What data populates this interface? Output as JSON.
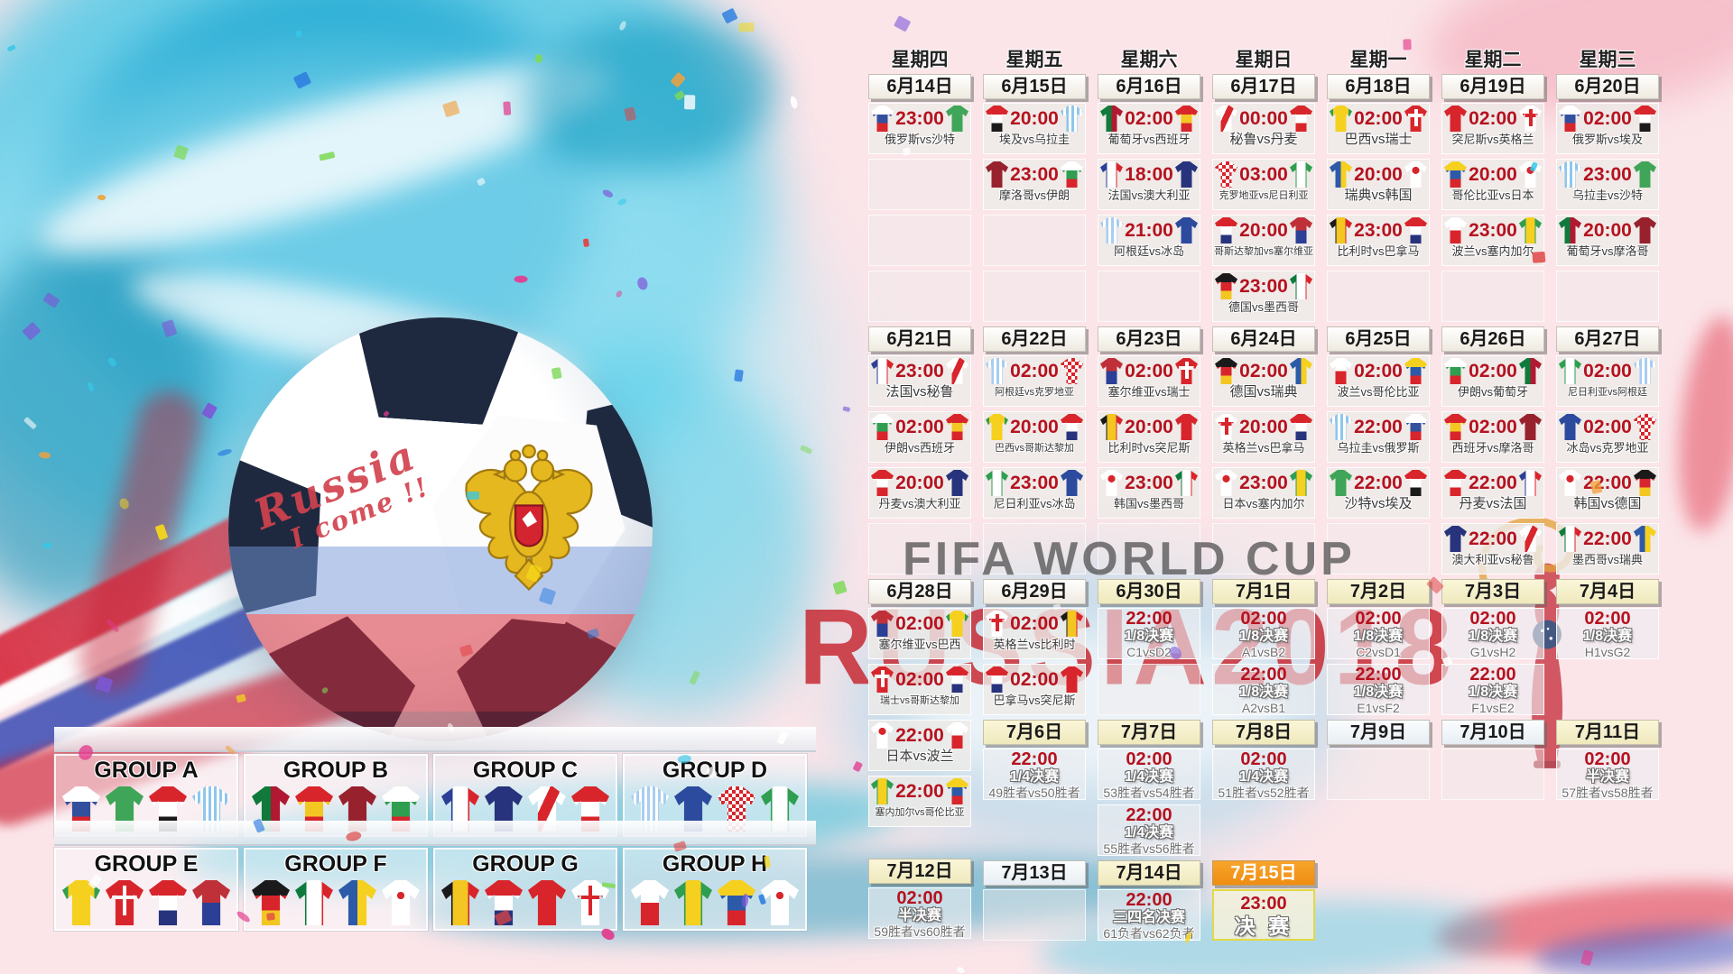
{
  "poster": {
    "watermark_title": "FIFA WORLD CUP",
    "watermark_subtitle": "RUSSIA2018",
    "ball_graffiti_1": "Russia",
    "ball_graffiti_2": "I come !!",
    "vs_joiner": "vs"
  },
  "palette": {
    "background_pink": "#fbe5e9",
    "time_red": "#b5121f",
    "watermark_red": "#c6232d",
    "watermark_gray": "#4a4a4a",
    "final_orange": "#f59a23",
    "final_border_yellow": "#e3d945",
    "splash_cyan": "#2ec9e6"
  },
  "teams": {
    "俄罗斯": {
      "p": "hb",
      "c": [
        "#ffffff",
        "#33509e",
        "#d8252b"
      ]
    },
    "沙特": {
      "p": "solid",
      "c": [
        "#3fa558"
      ]
    },
    "埃及": {
      "p": "hb",
      "c": [
        "#d8252b",
        "#ffffff",
        "#1a1a1a"
      ]
    },
    "乌拉圭": {
      "p": "vs",
      "c": [
        "#8ec6ec",
        "#ffffff"
      ]
    },
    "葡萄牙": {
      "p": "vb",
      "c": [
        "#0f7a3c",
        "#b01931"
      ]
    },
    "西班牙": {
      "p": "hb",
      "c": [
        "#d8252b",
        "#f3c622",
        "#d8252b"
      ]
    },
    "摩洛哥": {
      "p": "solid",
      "c": [
        "#97222e"
      ]
    },
    "伊朗": {
      "p": "hb",
      "c": [
        "#ffffff",
        "#2f9e50",
        "#d8252b"
      ]
    },
    "法国": {
      "p": "vb",
      "c": [
        "#2c3f96",
        "#ffffff",
        "#d8252b"
      ]
    },
    "澳大利亚": {
      "p": "solid",
      "c": [
        "#27337c"
      ]
    },
    "秘鲁": {
      "p": "sash",
      "c": [
        "#ffffff",
        "#d8252b"
      ]
    },
    "丹麦": {
      "p": "hb",
      "c": [
        "#d8252b",
        "#ffffff",
        "#d8252b"
      ]
    },
    "阿根廷": {
      "p": "vs",
      "c": [
        "#a8cdf0",
        "#ffffff"
      ]
    },
    "冰岛": {
      "p": "solid",
      "c": [
        "#2c4a9e"
      ]
    },
    "克罗地亚": {
      "p": "check",
      "c": [
        "#d8252b",
        "#ffffff"
      ]
    },
    "尼日利亚": {
      "p": "vb",
      "c": [
        "#2f9e50",
        "#ffffff",
        "#2f9e50"
      ]
    },
    "巴西": {
      "p": "slv",
      "c": [
        "#f5d01f",
        "#2f9e50"
      ]
    },
    "瑞士": {
      "p": "cross",
      "c": [
        "#d8252b",
        "#ffffff"
      ]
    },
    "哥斯达黎加": {
      "p": "hb",
      "c": [
        "#d8252b",
        "#ffffff",
        "#27337c"
      ]
    },
    "塞尔维亚": {
      "p": "hb",
      "c": [
        "#c03038",
        "#2c3f96"
      ]
    },
    "德国": {
      "p": "hb",
      "c": [
        "#1a1a1a",
        "#d8252b",
        "#f3c622"
      ]
    },
    "墨西哥": {
      "p": "vb",
      "c": [
        "#0f7a3c",
        "#ffffff",
        "#d8252b"
      ]
    },
    "瑞典": {
      "p": "vb",
      "c": [
        "#2c5aa8",
        "#f5d01f"
      ]
    },
    "韩国": {
      "p": "dot",
      "c": [
        "#ffffff",
        "#d8252b"
      ]
    },
    "比利时": {
      "p": "vb",
      "c": [
        "#1a1a1a",
        "#f3c622",
        "#d8252b"
      ]
    },
    "巴拿马": {
      "p": "hb",
      "c": [
        "#d8252b",
        "#ffffff",
        "#27337c"
      ]
    },
    "突尼斯": {
      "p": "solid",
      "c": [
        "#d8252b"
      ]
    },
    "英格兰": {
      "p": "cross",
      "c": [
        "#ffffff",
        "#d8252b"
      ]
    },
    "波兰": {
      "p": "hb",
      "c": [
        "#ffffff",
        "#d8252b"
      ]
    },
    "塞内加尔": {
      "p": "vb",
      "c": [
        "#2f9e50",
        "#f5d01f",
        "#2f9e50"
      ]
    },
    "哥伦比亚": {
      "p": "hb",
      "c": [
        "#f5d01f",
        "#2c5aa8",
        "#d8252b"
      ]
    },
    "日本": {
      "p": "dot",
      "c": [
        "#ffffff",
        "#d8252b"
      ]
    }
  },
  "schedule_columns": [
    {
      "weekday": "星期四",
      "slots": [
        {
          "t": "date",
          "v": "6月14日",
          "s": "w"
        },
        {
          "t": "m",
          "time": "23:00",
          "h": "俄罗斯",
          "a": "沙特"
        },
        {
          "t": "e"
        },
        {
          "t": "e"
        },
        {
          "t": "e"
        },
        {
          "t": "date",
          "v": "6月21日",
          "s": "w"
        },
        {
          "t": "m",
          "time": "23:00",
          "h": "法国",
          "a": "秘鲁"
        },
        {
          "t": "m",
          "time": "02:00",
          "h": "伊朗",
          "a": "西班牙"
        },
        {
          "t": "m",
          "time": "20:00",
          "h": "丹麦",
          "a": "澳大利亚"
        },
        {
          "t": "e"
        },
        {
          "t": "date",
          "v": "6月28日",
          "s": "w"
        },
        {
          "t": "m",
          "time": "02:00",
          "h": "塞尔维亚",
          "a": "巴西"
        },
        {
          "t": "m",
          "time": "02:00",
          "h": "瑞士",
          "a": "哥斯达黎加"
        },
        {
          "t": "m",
          "time": "22:00",
          "h": "日本",
          "a": "波兰"
        },
        {
          "t": "m",
          "time": "22:00",
          "h": "塞内加尔",
          "a": "哥伦比亚"
        },
        {
          "t": "sp",
          "h": 25
        },
        {
          "t": "date",
          "v": "7月12日",
          "s": "y"
        },
        {
          "t": "ko",
          "time": "02:00",
          "r": "半决赛",
          "p": "59胜者vs60胜者"
        }
      ]
    },
    {
      "weekday": "星期五",
      "slots": [
        {
          "t": "date",
          "v": "6月15日",
          "s": "w"
        },
        {
          "t": "m",
          "time": "20:00",
          "h": "埃及",
          "a": "乌拉圭"
        },
        {
          "t": "m",
          "time": "23:00",
          "h": "摩洛哥",
          "a": "伊朗"
        },
        {
          "t": "e"
        },
        {
          "t": "e"
        },
        {
          "t": "date",
          "v": "6月22日",
          "s": "w"
        },
        {
          "t": "m",
          "time": "02:00",
          "h": "阿根廷",
          "a": "克罗地亚"
        },
        {
          "t": "m",
          "time": "20:00",
          "h": "巴西",
          "a": "哥斯达黎加"
        },
        {
          "t": "m",
          "time": "23:00",
          "h": "尼日利亚",
          "a": "冰岛"
        },
        {
          "t": "e"
        },
        {
          "t": "date",
          "v": "6月29日",
          "s": "w"
        },
        {
          "t": "m",
          "time": "02:00",
          "h": "英格兰",
          "a": "比利时"
        },
        {
          "t": "m",
          "time": "02:00",
          "h": "巴拿马",
          "a": "突尼斯"
        },
        {
          "t": "date",
          "v": "7月6日",
          "s": "y"
        },
        {
          "t": "ko",
          "time": "22:00",
          "r": "1/4决赛",
          "p": "49胜者vs50胜者"
        },
        {
          "t": "sp"
        },
        {
          "t": "date",
          "v": "7月13日",
          "s": "b"
        },
        {
          "t": "e"
        }
      ]
    },
    {
      "weekday": "星期六",
      "slots": [
        {
          "t": "date",
          "v": "6月16日",
          "s": "w"
        },
        {
          "t": "m",
          "time": "02:00",
          "h": "葡萄牙",
          "a": "西班牙"
        },
        {
          "t": "m",
          "time": "18:00",
          "h": "法国",
          "a": "澳大利亚"
        },
        {
          "t": "m",
          "time": "21:00",
          "h": "阿根廷",
          "a": "冰岛"
        },
        {
          "t": "e"
        },
        {
          "t": "date",
          "v": "6月23日",
          "s": "w"
        },
        {
          "t": "m",
          "time": "02:00",
          "h": "塞尔维亚",
          "a": "瑞士"
        },
        {
          "t": "m",
          "time": "20:00",
          "h": "比利时",
          "a": "突尼斯"
        },
        {
          "t": "m",
          "time": "23:00",
          "h": "韩国",
          "a": "墨西哥"
        },
        {
          "t": "e"
        },
        {
          "t": "date",
          "v": "6月30日",
          "s": "y"
        },
        {
          "t": "ko",
          "time": "22:00",
          "r": "1/8决赛",
          "p": "C1vsD2"
        },
        {
          "t": "e"
        },
        {
          "t": "date",
          "v": "7月7日",
          "s": "y"
        },
        {
          "t": "ko",
          "time": "02:00",
          "r": "1/4决赛",
          "p": "53胜者vs54胜者"
        },
        {
          "t": "ko",
          "time": "22:00",
          "r": "1/4决赛",
          "p": "55胜者vs56胜者"
        },
        {
          "t": "date",
          "v": "7月14日",
          "s": "y"
        },
        {
          "t": "ko",
          "time": "22:00",
          "r": "三四名决赛",
          "p": "61负者vs62负者"
        }
      ]
    },
    {
      "weekday": "星期日",
      "slots": [
        {
          "t": "date",
          "v": "6月17日",
          "s": "w"
        },
        {
          "t": "m",
          "time": "00:00",
          "h": "秘鲁",
          "a": "丹麦"
        },
        {
          "t": "m",
          "time": "03:00",
          "h": "克罗地亚",
          "a": "尼日利亚"
        },
        {
          "t": "m",
          "time": "20:00",
          "h": "哥斯达黎加",
          "a": "塞尔维亚"
        },
        {
          "t": "m",
          "time": "23:00",
          "h": "德国",
          "a": "墨西哥"
        },
        {
          "t": "date",
          "v": "6月24日",
          "s": "w"
        },
        {
          "t": "m",
          "time": "02:00",
          "h": "德国",
          "a": "瑞典"
        },
        {
          "t": "m",
          "time": "20:00",
          "h": "英格兰",
          "a": "巴拿马"
        },
        {
          "t": "m",
          "time": "23:00",
          "h": "日本",
          "a": "塞内加尔"
        },
        {
          "t": "e"
        },
        {
          "t": "date",
          "v": "7月1日",
          "s": "y"
        },
        {
          "t": "ko",
          "time": "02:00",
          "r": "1/8决赛",
          "p": "A1vsB2"
        },
        {
          "t": "ko",
          "time": "22:00",
          "r": "1/8决赛",
          "p": "A2vsB1"
        },
        {
          "t": "date",
          "v": "7月8日",
          "s": "y"
        },
        {
          "t": "ko",
          "time": "02:00",
          "r": "1/4决赛",
          "p": "51胜者vs52胜者"
        },
        {
          "t": "sp"
        },
        {
          "t": "date",
          "v": "7月15日",
          "s": "o"
        },
        {
          "t": "fin",
          "time": "23:00",
          "r": "决 赛"
        }
      ]
    },
    {
      "weekday": "星期一",
      "slots": [
        {
          "t": "date",
          "v": "6月18日",
          "s": "w"
        },
        {
          "t": "m",
          "time": "02:00",
          "h": "巴西",
          "a": "瑞士"
        },
        {
          "t": "m",
          "time": "20:00",
          "h": "瑞典",
          "a": "韩国"
        },
        {
          "t": "m",
          "time": "23:00",
          "h": "比利时",
          "a": "巴拿马"
        },
        {
          "t": "e"
        },
        {
          "t": "date",
          "v": "6月25日",
          "s": "w"
        },
        {
          "t": "m",
          "time": "02:00",
          "h": "波兰",
          "a": "哥伦比亚"
        },
        {
          "t": "m",
          "time": "22:00",
          "h": "乌拉圭",
          "a": "俄罗斯"
        },
        {
          "t": "m",
          "time": "22:00",
          "h": "沙特",
          "a": "埃及"
        },
        {
          "t": "e"
        },
        {
          "t": "date",
          "v": "7月2日",
          "s": "y"
        },
        {
          "t": "ko",
          "time": "02:00",
          "r": "1/8决赛",
          "p": "C2vsD1"
        },
        {
          "t": "ko",
          "time": "22:00",
          "r": "1/8决赛",
          "p": "E1vsF2"
        },
        {
          "t": "date",
          "v": "7月9日",
          "s": "b"
        },
        {
          "t": "e"
        }
      ]
    },
    {
      "weekday": "星期二",
      "slots": [
        {
          "t": "date",
          "v": "6月19日",
          "s": "w"
        },
        {
          "t": "m",
          "time": "02:00",
          "h": "突尼斯",
          "a": "英格兰"
        },
        {
          "t": "m",
          "time": "20:00",
          "h": "哥伦比亚",
          "a": "日本"
        },
        {
          "t": "m",
          "time": "23:00",
          "h": "波兰",
          "a": "塞内加尔"
        },
        {
          "t": "e"
        },
        {
          "t": "date",
          "v": "6月26日",
          "s": "w"
        },
        {
          "t": "m",
          "time": "02:00",
          "h": "伊朗",
          "a": "葡萄牙"
        },
        {
          "t": "m",
          "time": "02:00",
          "h": "西班牙",
          "a": "摩洛哥"
        },
        {
          "t": "m",
          "time": "22:00",
          "h": "丹麦",
          "a": "法国"
        },
        {
          "t": "m",
          "time": "22:00",
          "h": "澳大利亚",
          "a": "秘鲁"
        },
        {
          "t": "date",
          "v": "7月3日",
          "s": "y"
        },
        {
          "t": "ko",
          "time": "02:00",
          "r": "1/8决赛",
          "p": "G1vsH2"
        },
        {
          "t": "ko",
          "time": "22:00",
          "r": "1/8决赛",
          "p": "F1vsE2"
        },
        {
          "t": "date",
          "v": "7月10日",
          "s": "b"
        },
        {
          "t": "e"
        }
      ]
    },
    {
      "weekday": "星期三",
      "slots": [
        {
          "t": "date",
          "v": "6月20日",
          "s": "w"
        },
        {
          "t": "m",
          "time": "02:00",
          "h": "俄罗斯",
          "a": "埃及"
        },
        {
          "t": "m",
          "time": "23:00",
          "h": "乌拉圭",
          "a": "沙特"
        },
        {
          "t": "m",
          "time": "20:00",
          "h": "葡萄牙",
          "a": "摩洛哥"
        },
        {
          "t": "e"
        },
        {
          "t": "date",
          "v": "6月27日",
          "s": "w"
        },
        {
          "t": "m",
          "time": "02:00",
          "h": "尼日利亚",
          "a": "阿根廷"
        },
        {
          "t": "m",
          "time": "02:00",
          "h": "冰岛",
          "a": "克罗地亚"
        },
        {
          "t": "m",
          "time": "22:00",
          "h": "韩国",
          "a": "德国"
        },
        {
          "t": "m",
          "time": "22:00",
          "h": "墨西哥",
          "a": "瑞典"
        },
        {
          "t": "date",
          "v": "7月4日",
          "s": "y"
        },
        {
          "t": "ko",
          "time": "02:00",
          "r": "1/8决赛",
          "p": "H1vsG2"
        },
        {
          "t": "sp"
        },
        {
          "t": "date",
          "v": "7月11日",
          "s": "y"
        },
        {
          "t": "ko",
          "time": "02:00",
          "r": "半决赛",
          "p": "57胜者vs58胜者"
        }
      ]
    }
  ],
  "groups": [
    {
      "name": "GROUP A",
      "teams": [
        "俄罗斯",
        "沙特",
        "埃及",
        "乌拉圭"
      ]
    },
    {
      "name": "GROUP B",
      "teams": [
        "葡萄牙",
        "西班牙",
        "摩洛哥",
        "伊朗"
      ]
    },
    {
      "name": "GROUP C",
      "teams": [
        "法国",
        "澳大利亚",
        "秘鲁",
        "丹麦"
      ]
    },
    {
      "name": "GROUP D",
      "teams": [
        "阿根廷",
        "冰岛",
        "克罗地亚",
        "尼日利亚"
      ]
    },
    {
      "name": "GROUP E",
      "teams": [
        "巴西",
        "瑞士",
        "哥斯达黎加",
        "塞尔维亚"
      ]
    },
    {
      "name": "GROUP F",
      "teams": [
        "德国",
        "墨西哥",
        "瑞典",
        "韩国"
      ]
    },
    {
      "name": "GROUP G",
      "teams": [
        "比利时",
        "巴拿马",
        "突尼斯",
        "英格兰"
      ]
    },
    {
      "name": "GROUP H",
      "teams": [
        "波兰",
        "塞内加尔",
        "哥伦比亚",
        "日本"
      ]
    }
  ]
}
